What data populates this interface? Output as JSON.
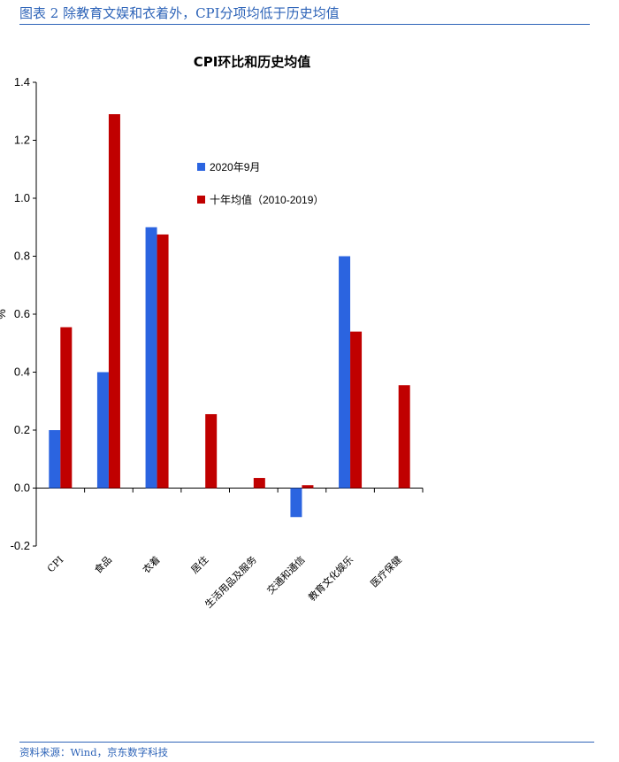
{
  "figure": {
    "title": "图表 2 除教育文娱和衣着外，CPI分项均低于历史均值",
    "source": "资料来源：Wind，京东数字科技"
  },
  "colors": {
    "series1": "#2b64e0",
    "series2": "#c00000",
    "header": "#2e64b8"
  },
  "chart_data": {
    "type": "bar",
    "title": "CPI环比和历史均值",
    "ylabel": "%",
    "xlabel": "",
    "ylim": [
      -0.2,
      1.4
    ],
    "yticks": [
      "1.4",
      "1.2",
      "1.0",
      "0.8",
      "0.6",
      "0.4",
      "0.2",
      "0.0",
      "-0.2"
    ],
    "ytick_values": [
      1.4,
      1.2,
      1.0,
      0.8,
      0.6,
      0.4,
      0.2,
      0.0,
      -0.2
    ],
    "categories": [
      "CPI",
      "食品",
      "衣着",
      "居住",
      "生活用品及服务",
      "交通和通信",
      "教育文化娱乐",
      "医疗保健"
    ],
    "series": [
      {
        "name": "2020年9月",
        "values": [
          0.2,
          0.4,
          0.9,
          0.0,
          0.0,
          -0.1,
          0.8,
          0.0
        ]
      },
      {
        "name": "十年均值（2010-2019）",
        "values": [
          0.555,
          1.29,
          0.875,
          0.255,
          0.035,
          0.01,
          0.54,
          0.355
        ]
      }
    ],
    "legend_position": "upper-middle",
    "grid": false
  }
}
